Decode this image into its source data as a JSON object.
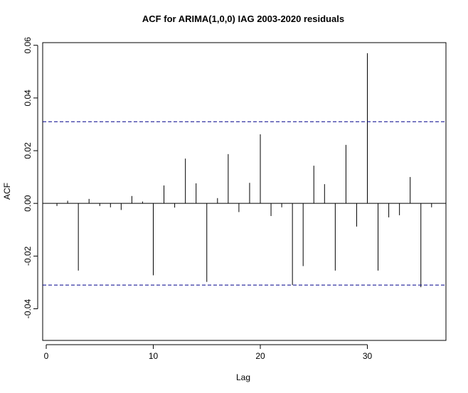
{
  "chart_data": {
    "type": "bar",
    "title": "ACF for ARIMA(1,0,0) IAG 2003-2020 residuals",
    "xlabel": "Lag",
    "ylabel": "ACF",
    "xlim": [
      0,
      37
    ],
    "ylim": [
      -0.052,
      0.061
    ],
    "x_ticks": [
      0,
      10,
      20,
      30
    ],
    "y_ticks": [
      -0.04,
      -0.02,
      0.0,
      0.02,
      0.04,
      0.06
    ],
    "y_tick_labels": [
      "-0.04",
      "-0.02",
      "0.00",
      "0.02",
      "0.04",
      "0.06"
    ],
    "confidence_bound": 0.031,
    "confidence_line_color": "#00008b",
    "grid": false,
    "lags": [
      1,
      2,
      3,
      4,
      5,
      6,
      7,
      8,
      9,
      10,
      11,
      12,
      13,
      14,
      15,
      16,
      17,
      18,
      19,
      20,
      21,
      22,
      23,
      24,
      25,
      26,
      27,
      28,
      29,
      30,
      31,
      32,
      33,
      34,
      35,
      36
    ],
    "values": [
      -0.001,
      0.001,
      -0.0255,
      0.0017,
      -0.001,
      -0.0015,
      -0.0025,
      0.0028,
      0.0007,
      -0.0273,
      0.0068,
      -0.0016,
      0.017,
      0.0076,
      -0.0298,
      0.002,
      0.0187,
      -0.0033,
      0.0078,
      0.0262,
      -0.0048,
      -0.0015,
      -0.031,
      -0.0238,
      0.0143,
      0.0073,
      -0.0255,
      0.0222,
      -0.0088,
      0.057,
      -0.0255,
      -0.0053,
      -0.0045,
      0.01,
      -0.0318,
      -0.0015
    ]
  }
}
